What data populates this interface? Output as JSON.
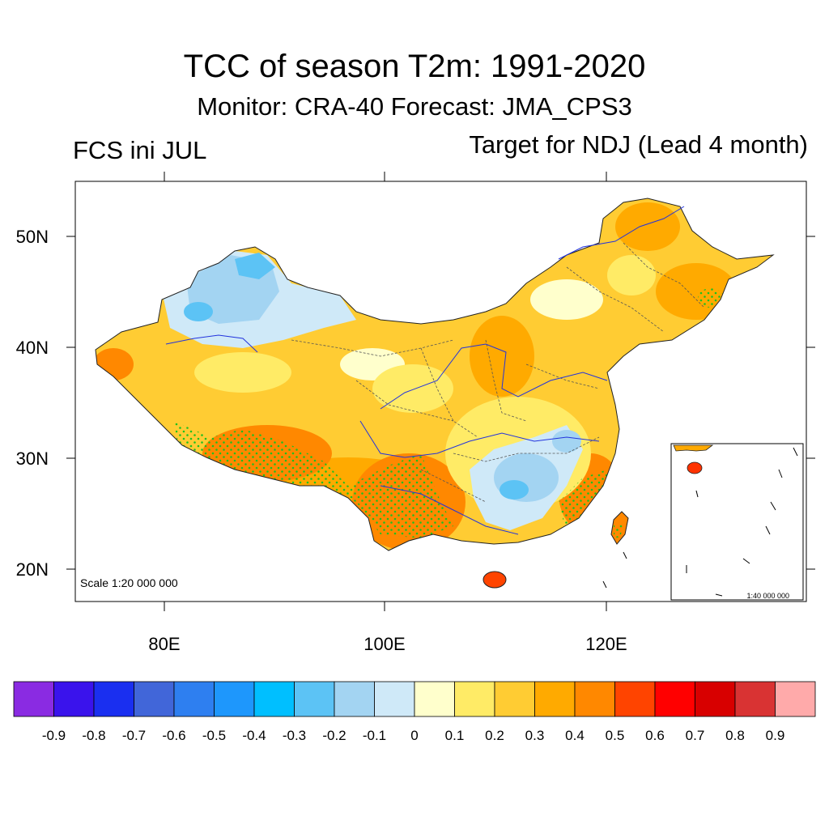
{
  "title": "TCC of season T2m: 1991-2020",
  "subtitle": "Monitor: CRA-40   Forecast: JMA_CPS3",
  "left_label": "FCS ini JUL",
  "right_label": "Target for NDJ (Lead 4 month)",
  "map": {
    "scale_main": "Scale 1:20 000 000",
    "scale_inset": "1:40 000 000",
    "lat_ticks": [
      "50N",
      "40N",
      "30N",
      "20N"
    ],
    "lon_ticks": [
      "80E",
      "100E",
      "120E"
    ]
  },
  "colorbar": {
    "colors": [
      "#8a2be2",
      "#3a13ec",
      "#1a2ff0",
      "#4166d9",
      "#2e7ff0",
      "#1e97fc",
      "#00bfff",
      "#5cc3f5",
      "#a3d4f2",
      "#cfe9f8",
      "#ffffcc",
      "#ffeb66",
      "#ffcc33",
      "#ffaa00",
      "#ff8800",
      "#ff4400",
      "#ff0000",
      "#d80000",
      "#d93333",
      "#ffaaaa"
    ],
    "labels": [
      "-0.9",
      "-0.8",
      "-0.7",
      "-0.6",
      "-0.5",
      "-0.4",
      "-0.3",
      "-0.2",
      "-0.1",
      "0",
      "0.1",
      "0.2",
      "0.3",
      "0.4",
      "0.5",
      "0.6",
      "0.7",
      "0.8",
      "0.9"
    ]
  }
}
